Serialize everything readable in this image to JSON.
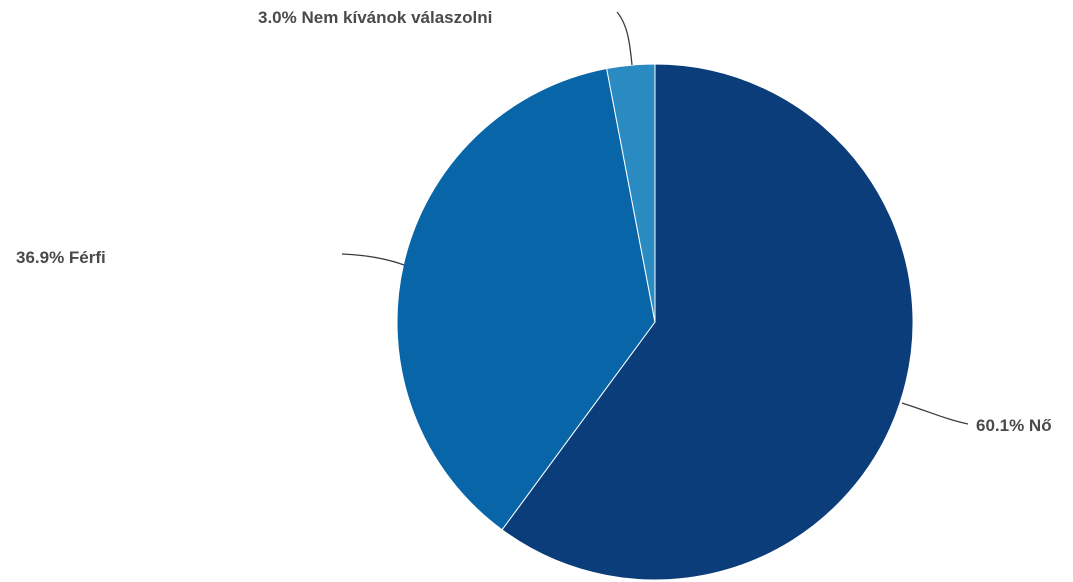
{
  "chart_data": {
    "type": "pie",
    "title": "",
    "slices": [
      {
        "name": "Nő",
        "value": 60.1,
        "label": "60.1% Nő",
        "color": "#0a3d7a"
      },
      {
        "name": "Férfi",
        "value": 36.9,
        "label": "36.9% Férfi",
        "color": "#0865a8"
      },
      {
        "name": "Nem kívánok válaszolni",
        "value": 3.0,
        "label": "3.0% Nem kívánok válaszolni",
        "color": "#2a8ac2"
      }
    ],
    "start_angle": "12 o'clock",
    "direction": "clockwise",
    "legend": "none"
  }
}
